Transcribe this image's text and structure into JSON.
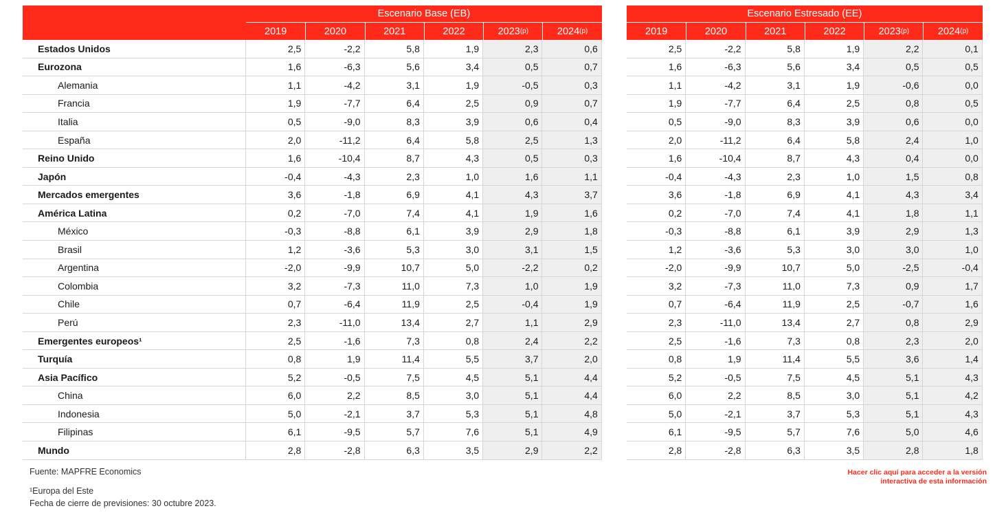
{
  "base": {
    "title": "Escenario Base (EB)",
    "years": [
      {
        "y": "2019",
        "p": ""
      },
      {
        "y": "2020",
        "p": ""
      },
      {
        "y": "2021",
        "p": ""
      },
      {
        "y": "2022",
        "p": ""
      },
      {
        "y": "2023",
        "p": "(p)"
      },
      {
        "y": "2024",
        "p": "(p)"
      }
    ]
  },
  "stress": {
    "title": "Escenario Estresado (EE)",
    "years": [
      {
        "y": "2019",
        "p": ""
      },
      {
        "y": "2020",
        "p": ""
      },
      {
        "y": "2021",
        "p": ""
      },
      {
        "y": "2022",
        "p": ""
      },
      {
        "y": "2023",
        "p": "(p)"
      },
      {
        "y": "2024",
        "p": "(p)"
      }
    ]
  },
  "rows": [
    {
      "label": "Estados Unidos",
      "level": 0,
      "base": [
        "2,5",
        "-2,2",
        "5,8",
        "1,9",
        "2,3",
        "0,6"
      ],
      "stress": [
        "2,5",
        "-2,2",
        "5,8",
        "1,9",
        "2,2",
        "0,1"
      ]
    },
    {
      "label": "Eurozona",
      "level": 0,
      "base": [
        "1,6",
        "-6,3",
        "5,6",
        "3,4",
        "0,5",
        "0,7"
      ],
      "stress": [
        "1,6",
        "-6,3",
        "5,6",
        "3,4",
        "0,5",
        "0,5"
      ]
    },
    {
      "label": "Alemania",
      "level": 1,
      "base": [
        "1,1",
        "-4,2",
        "3,1",
        "1,9",
        "-0,5",
        "0,3"
      ],
      "stress": [
        "1,1",
        "-4,2",
        "3,1",
        "1,9",
        "-0,6",
        "0,0"
      ]
    },
    {
      "label": "Francia",
      "level": 1,
      "base": [
        "1,9",
        "-7,7",
        "6,4",
        "2,5",
        "0,9",
        "0,7"
      ],
      "stress": [
        "1,9",
        "-7,7",
        "6,4",
        "2,5",
        "0,8",
        "0,5"
      ]
    },
    {
      "label": "Italia",
      "level": 1,
      "base": [
        "0,5",
        "-9,0",
        "8,3",
        "3,9",
        "0,6",
        "0,4"
      ],
      "stress": [
        "0,5",
        "-9,0",
        "8,3",
        "3,9",
        "0,6",
        "0,0"
      ]
    },
    {
      "label": "España",
      "level": 1,
      "base": [
        "2,0",
        "-11,2",
        "6,4",
        "5,8",
        "2,5",
        "1,3"
      ],
      "stress": [
        "2,0",
        "-11,2",
        "6,4",
        "5,8",
        "2,4",
        "1,0"
      ]
    },
    {
      "label": "Reino Unido",
      "level": 0,
      "base": [
        "1,6",
        "-10,4",
        "8,7",
        "4,3",
        "0,5",
        "0,3"
      ],
      "stress": [
        "1,6",
        "-10,4",
        "8,7",
        "4,3",
        "0,4",
        "0,0"
      ]
    },
    {
      "label": "Japón",
      "level": 0,
      "base": [
        "-0,4",
        "-4,3",
        "2,3",
        "1,0",
        "1,6",
        "1,1"
      ],
      "stress": [
        "-0,4",
        "-4,3",
        "2,3",
        "1,0",
        "1,5",
        "0,8"
      ]
    },
    {
      "label": "Mercados emergentes",
      "level": 0,
      "base": [
        "3,6",
        "-1,8",
        "6,9",
        "4,1",
        "4,3",
        "3,7"
      ],
      "stress": [
        "3,6",
        "-1,8",
        "6,9",
        "4,1",
        "4,3",
        "3,4"
      ]
    },
    {
      "label": "América Latina",
      "level": 0,
      "base": [
        "0,2",
        "-7,0",
        "7,4",
        "4,1",
        "1,9",
        "1,6"
      ],
      "stress": [
        "0,2",
        "-7,0",
        "7,4",
        "4,1",
        "1,8",
        "1,1"
      ]
    },
    {
      "label": "México",
      "level": 1,
      "base": [
        "-0,3",
        "-8,8",
        "6,1",
        "3,9",
        "2,9",
        "1,8"
      ],
      "stress": [
        "-0,3",
        "-8,8",
        "6,1",
        "3,9",
        "2,9",
        "1,3"
      ]
    },
    {
      "label": "Brasil",
      "level": 1,
      "base": [
        "1,2",
        "-3,6",
        "5,3",
        "3,0",
        "3,1",
        "1,5"
      ],
      "stress": [
        "1,2",
        "-3,6",
        "5,3",
        "3,0",
        "3,0",
        "1,0"
      ]
    },
    {
      "label": "Argentina",
      "level": 1,
      "base": [
        "-2,0",
        "-9,9",
        "10,7",
        "5,0",
        "-2,2",
        "0,2"
      ],
      "stress": [
        "-2,0",
        "-9,9",
        "10,7",
        "5,0",
        "-2,5",
        "-0,4"
      ]
    },
    {
      "label": "Colombia",
      "level": 1,
      "base": [
        "3,2",
        "-7,3",
        "11,0",
        "7,3",
        "1,0",
        "1,9"
      ],
      "stress": [
        "3,2",
        "-7,3",
        "11,0",
        "7,3",
        "0,9",
        "1,7"
      ]
    },
    {
      "label": "Chile",
      "level": 1,
      "base": [
        "0,7",
        "-6,4",
        "11,9",
        "2,5",
        "-0,4",
        "1,9"
      ],
      "stress": [
        "0,7",
        "-6,4",
        "11,9",
        "2,5",
        "-0,7",
        "1,6"
      ]
    },
    {
      "label": "Perú",
      "level": 1,
      "base": [
        "2,3",
        "-11,0",
        "13,4",
        "2,7",
        "1,1",
        "2,9"
      ],
      "stress": [
        "2,3",
        "-11,0",
        "13,4",
        "2,7",
        "0,8",
        "2,9"
      ]
    },
    {
      "label": "Emergentes europeos¹",
      "level": 0,
      "base": [
        "2,5",
        "-1,6",
        "7,3",
        "0,8",
        "2,4",
        "2,2"
      ],
      "stress": [
        "2,5",
        "-1,6",
        "7,3",
        "0,8",
        "2,3",
        "2,0"
      ]
    },
    {
      "label": "Turquía",
      "level": 0,
      "base": [
        "0,8",
        "1,9",
        "11,4",
        "5,5",
        "3,7",
        "2,0"
      ],
      "stress": [
        "0,8",
        "1,9",
        "11,4",
        "5,5",
        "3,6",
        "1,4"
      ]
    },
    {
      "label": "Asia Pacífico",
      "level": 0,
      "base": [
        "5,2",
        "-0,5",
        "7,5",
        "4,5",
        "5,1",
        "4,4"
      ],
      "stress": [
        "5,2",
        "-0,5",
        "7,5",
        "4,5",
        "5,1",
        "4,3"
      ]
    },
    {
      "label": "China",
      "level": 1,
      "base": [
        "6,0",
        "2,2",
        "8,5",
        "3,0",
        "5,1",
        "4,4"
      ],
      "stress": [
        "6,0",
        "2,2",
        "8,5",
        "3,0",
        "5,1",
        "4,2"
      ]
    },
    {
      "label": "Indonesia",
      "level": 1,
      "base": [
        "5,0",
        "-2,1",
        "3,7",
        "5,3",
        "5,1",
        "4,8"
      ],
      "stress": [
        "5,0",
        "-2,1",
        "3,7",
        "5,3",
        "5,1",
        "4,3"
      ]
    },
    {
      "label": "Filipinas",
      "level": 1,
      "base": [
        "6,1",
        "-9,5",
        "5,7",
        "7,6",
        "5,1",
        "4,9"
      ],
      "stress": [
        "6,1",
        "-9,5",
        "5,7",
        "7,6",
        "5,0",
        "4,6"
      ]
    },
    {
      "label": "Mundo",
      "level": 0,
      "base": [
        "2,8",
        "-2,8",
        "6,3",
        "3,5",
        "2,9",
        "2,2"
      ],
      "stress": [
        "2,8",
        "-2,8",
        "6,3",
        "3,5",
        "2,8",
        "1,8"
      ]
    }
  ],
  "notes": {
    "source": "Fuente: MAPFRE Economics",
    "footnote": "¹Europa del Este",
    "cutoff": "Fecha de cierre de previsiones: 30 octubre 2023.",
    "link_line1": "Hacer clic aquí para acceder a la versión",
    "link_line2": "interactiva de esta información"
  },
  "colors": {
    "header": "#ff2a1a",
    "projection_bg": "#efefef"
  }
}
